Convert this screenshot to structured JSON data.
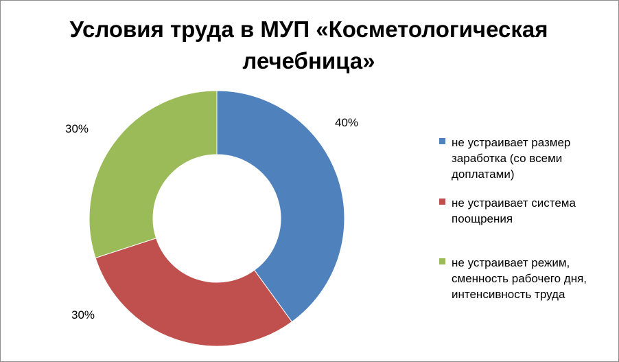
{
  "chart_data": {
    "type": "pie",
    "subtype": "donut",
    "title": "Условия труда в МУП «Косметологическая лечебница»",
    "legend_position": "right",
    "slices": [
      {
        "label": "не устраивает размер заработка (со всеми доплатами)",
        "value": 40,
        "value_label": "40%",
        "color": "#4F81BD"
      },
      {
        "label": "не устраивает система поощрения",
        "value": 30,
        "value_label": "30%",
        "color": "#C0504D"
      },
      {
        "label": "не устраивает режим, сменность рабочего дня, интенсивность труда",
        "value": 30,
        "value_label": "30%",
        "color": "#9BBB59"
      }
    ]
  },
  "legend": {
    "items": [
      {
        "text_lines": [
          "не устраивает размер",
          "заработка (со всеми",
          "доплатами)"
        ]
      },
      {
        "text_lines": [
          "не устраивает система",
          "поощрения"
        ]
      },
      {
        "text_lines": [
          "не устраивает режим,",
          "сменность рабочего дня,",
          "интенсивность труда"
        ]
      }
    ]
  }
}
